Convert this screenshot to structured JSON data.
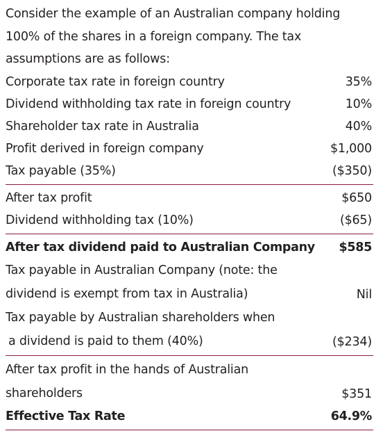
{
  "intro": "Consider the example of an Australian company holding 100% of the shares in a foreign company. The tax assumptions are as follows:",
  "assumptions": [
    {
      "label": "Corporate tax rate in foreign country",
      "value": "35%"
    },
    {
      "label": "Dividend withholding tax rate in foreign country",
      "value": "10%"
    },
    {
      "label": "Shareholder tax rate in Australia",
      "value": "40%"
    },
    {
      "label": "Profit derived in foreign company",
      "value": "$1,000"
    },
    {
      "label": "Tax payable (35%)",
      "value": "($350)"
    }
  ],
  "after_tax": [
    {
      "label": "After tax profit",
      "value": "$650"
    },
    {
      "label": "Dividend withholding tax (10%)",
      "value": "($65)"
    }
  ],
  "dividend_paid": {
    "label": "After tax dividend paid to Australian Company",
    "value": "$585"
  },
  "tax_au_company": {
    "line1": "Tax payable in Australian Company (note: the",
    "line2": "dividend is exempt from tax in Australia)",
    "value": "Nil"
  },
  "tax_au_shareholders": {
    "line1": "Tax payable by Australian shareholders when",
    "line2": "a dividend is paid to them (40%)",
    "value": "($234)"
  },
  "after_tax_hands": {
    "line1": "After tax profit in the hands of Australian",
    "line2": "shareholders",
    "value": "$351"
  },
  "effective_rate": {
    "label": "Effective Tax Rate",
    "value": "64.9%"
  }
}
